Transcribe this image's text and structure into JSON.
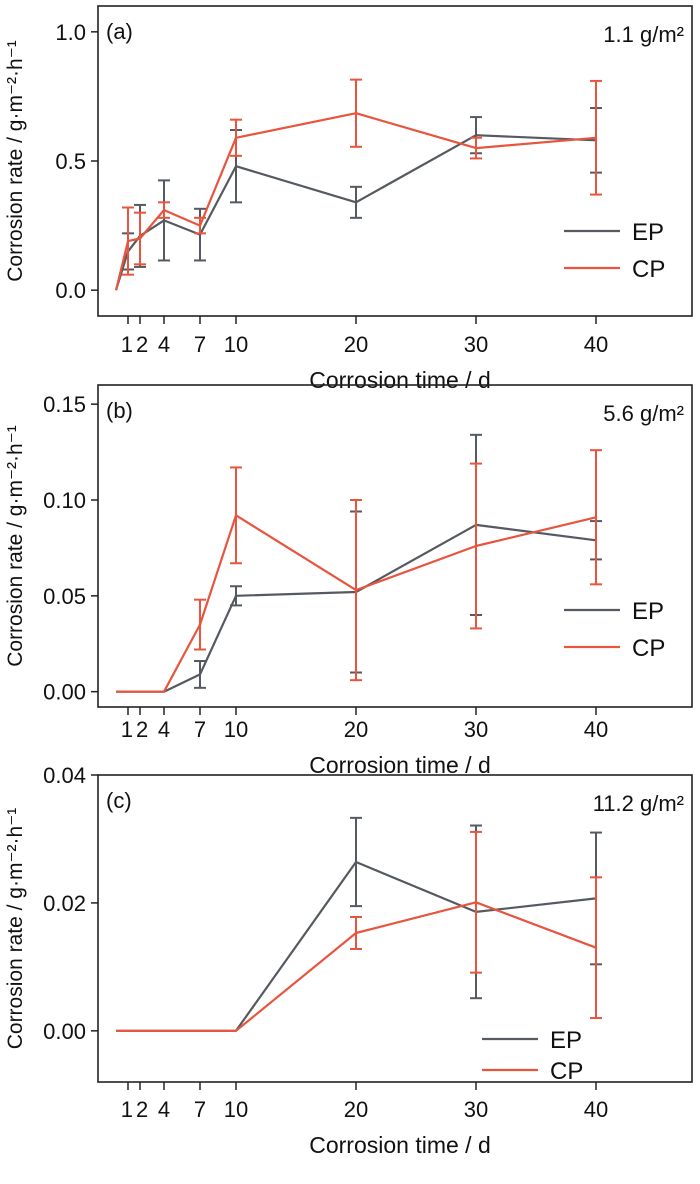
{
  "figure": {
    "colors": {
      "EP": "#555a60",
      "CP": "#e8553e",
      "axis": "#222222"
    }
  },
  "chart_data": [
    {
      "type": "line",
      "panel_label": "(a)",
      "annotation": "1.1 g/m²",
      "xlabel": "Corrosion time / d",
      "ylabel": "Corrosion rate / g·m⁻²·h⁻¹",
      "xlim": [
        -1.5,
        48
      ],
      "ylim": [
        -0.1,
        1.1
      ],
      "xticks": [
        1,
        2,
        4,
        7,
        10,
        20,
        30,
        40
      ],
      "xticklabels": [
        "1",
        "2",
        "4",
        "7",
        "10",
        "20",
        "30",
        "40"
      ],
      "yticks": [
        0.0,
        0.5,
        1.0
      ],
      "yticklabels": [
        "0.0",
        "0.5",
        "1.0"
      ],
      "grid": false,
      "legend_position": "right-middle",
      "series": [
        {
          "name": "EP",
          "x": [
            0,
            1,
            2,
            4,
            7,
            10,
            20,
            30,
            40
          ],
          "y": [
            0.0,
            0.15,
            0.21,
            0.27,
            0.215,
            0.48,
            0.34,
            0.6,
            0.58
          ],
          "err": [
            0.0,
            0.07,
            0.12,
            0.155,
            0.1,
            0.14,
            0.06,
            0.07,
            0.125
          ]
        },
        {
          "name": "CP",
          "x": [
            0,
            1,
            2,
            4,
            7,
            10,
            20,
            30,
            40
          ],
          "y": [
            0.0,
            0.19,
            0.2,
            0.31,
            0.25,
            0.59,
            0.685,
            0.55,
            0.59
          ],
          "err": [
            0.0,
            0.13,
            0.1,
            0.03,
            0.03,
            0.07,
            0.13,
            0.04,
            0.22
          ]
        }
      ]
    },
    {
      "type": "line",
      "panel_label": "(b)",
      "annotation": "5.6 g/m²",
      "xlabel": "Corrosion time / d",
      "ylabel": "Corrosion rate / g·m⁻²·h⁻¹",
      "xlim": [
        -1.5,
        48
      ],
      "ylim": [
        -0.008,
        0.16
      ],
      "xticks": [
        1,
        2,
        4,
        7,
        10,
        20,
        30,
        40
      ],
      "xticklabels": [
        "1",
        "2",
        "4",
        "7",
        "10",
        "20",
        "30",
        "40"
      ],
      "yticks": [
        0.0,
        0.05,
        0.1,
        0.15
      ],
      "yticklabels": [
        "0.00",
        "0.05",
        "0.10",
        "0.15"
      ],
      "grid": false,
      "legend_position": "right-middle",
      "series": [
        {
          "name": "EP",
          "x": [
            0,
            1,
            2,
            4,
            7,
            10,
            20,
            30,
            40
          ],
          "y": [
            0.0,
            0.0,
            0.0,
            0.0,
            0.009,
            0.05,
            0.052,
            0.087,
            0.079
          ],
          "err": [
            0.0,
            0.0,
            0.0,
            0.0,
            0.007,
            0.005,
            0.042,
            0.047,
            0.01
          ]
        },
        {
          "name": "CP",
          "x": [
            0,
            1,
            2,
            4,
            7,
            10,
            20,
            30,
            40
          ],
          "y": [
            0.0,
            0.0,
            0.0,
            0.0,
            0.035,
            0.092,
            0.053,
            0.076,
            0.091
          ],
          "err": [
            0.0,
            0.0,
            0.0,
            0.0,
            0.013,
            0.025,
            0.047,
            0.043,
            0.035
          ]
        }
      ]
    },
    {
      "type": "line",
      "panel_label": "(c)",
      "annotation": "11.2 g/m²",
      "xlabel": "Corrosion time / d",
      "ylabel": "Corrosion rate / g·m⁻²·h⁻¹",
      "xlim": [
        -1.5,
        48
      ],
      "ylim": [
        -0.008,
        0.04
      ],
      "xticks": [
        1,
        2,
        4,
        7,
        10,
        20,
        30,
        40
      ],
      "xticklabels": [
        "1",
        "2",
        "4",
        "7",
        "10",
        "20",
        "30",
        "40"
      ],
      "yticks": [
        0.0,
        0.02,
        0.04
      ],
      "yticklabels": [
        "0.00",
        "0.02",
        "0.04"
      ],
      "grid": false,
      "legend_position": "bottom-right",
      "series": [
        {
          "name": "EP",
          "x": [
            0,
            1,
            2,
            4,
            7,
            10,
            20,
            30,
            40
          ],
          "y": [
            0.0,
            0.0,
            0.0,
            0.0,
            0.0,
            0.0,
            0.0264,
            0.0186,
            0.0207
          ],
          "err": [
            0.0,
            0.0,
            0.0,
            0.0,
            0.0,
            0.0,
            0.0069,
            0.0135,
            0.0103
          ]
        },
        {
          "name": "CP",
          "x": [
            0,
            1,
            2,
            4,
            7,
            10,
            20,
            30,
            40
          ],
          "y": [
            0.0,
            0.0,
            0.0,
            0.0,
            0.0,
            0.0,
            0.0153,
            0.0201,
            0.013
          ],
          "err": [
            0.0,
            0.0,
            0.0,
            0.0,
            0.0,
            0.0,
            0.0025,
            0.011,
            0.011
          ]
        }
      ]
    }
  ]
}
